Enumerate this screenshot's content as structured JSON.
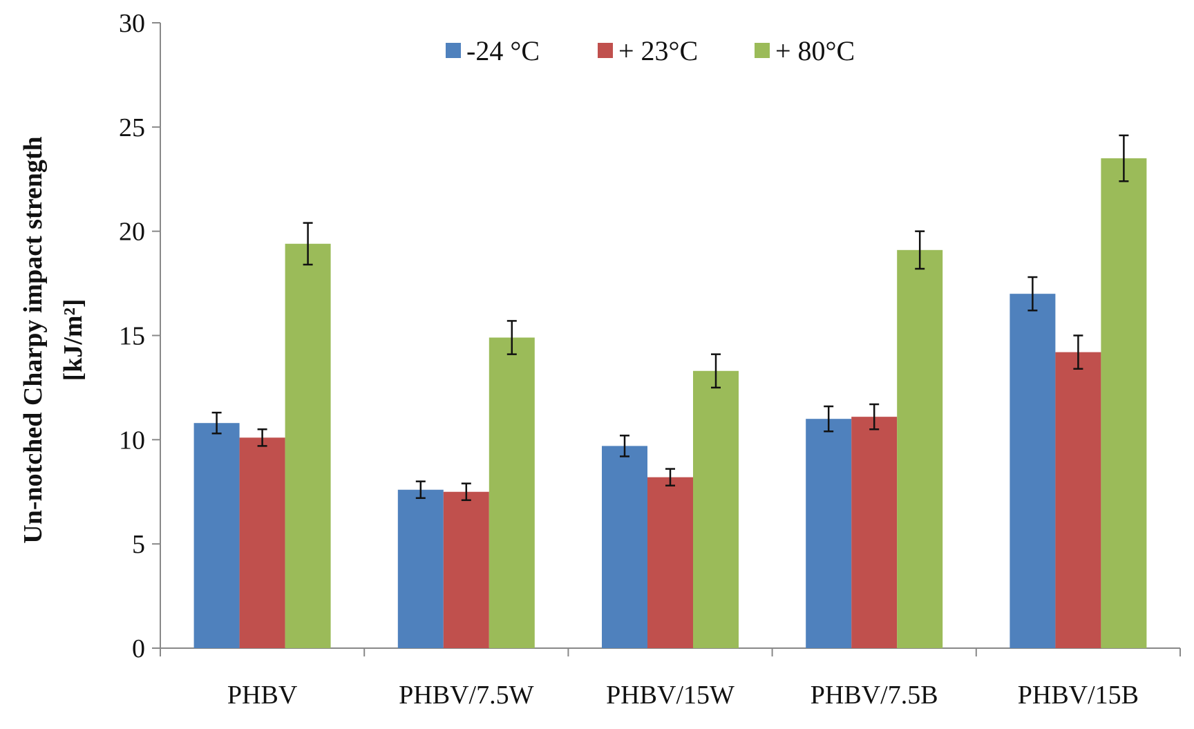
{
  "chart_data": {
    "type": "bar",
    "title": "",
    "xlabel": "",
    "ylabel_line1": "Un-notched Charpy impact strength",
    "ylabel_line2": "[kJ/m²]",
    "ylim": [
      0,
      30
    ],
    "yticks": [
      0,
      5,
      10,
      15,
      20,
      25,
      30
    ],
    "grid": false,
    "legend_position": "top",
    "categories": [
      "PHBV",
      "PHBV/7.5W",
      "PHBV/15W",
      "PHBV/7.5B",
      "PHBV/15B"
    ],
    "series": [
      {
        "name": "-24 °C",
        "color": "#4F81BD",
        "values": [
          10.8,
          7.6,
          9.7,
          11.0,
          17.0
        ],
        "errors": [
          0.5,
          0.4,
          0.5,
          0.6,
          0.8
        ]
      },
      {
        "name": "+ 23°C",
        "color": "#C0504D",
        "values": [
          10.1,
          7.5,
          8.2,
          11.1,
          14.2
        ],
        "errors": [
          0.4,
          0.4,
          0.4,
          0.6,
          0.8
        ]
      },
      {
        "name": "+ 80°C",
        "color": "#9BBB59",
        "values": [
          19.4,
          14.9,
          13.3,
          19.1,
          23.5
        ],
        "errors": [
          1.0,
          0.8,
          0.8,
          0.9,
          1.1
        ]
      }
    ]
  }
}
